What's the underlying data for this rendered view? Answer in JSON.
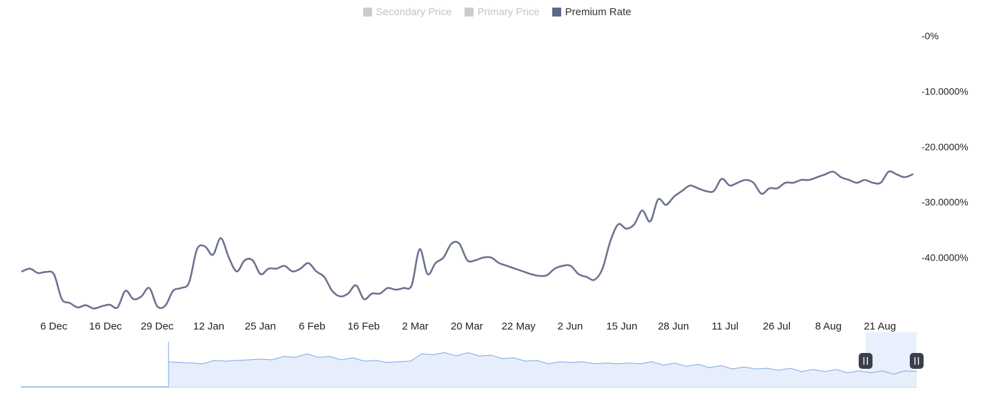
{
  "legend": [
    {
      "label": "Secondary Price",
      "active": false,
      "color": "#cccccc"
    },
    {
      "label": "Primary Price",
      "active": false,
      "color": "#cccccc"
    },
    {
      "label": "Premium Rate",
      "active": true,
      "color": "#5d6789"
    }
  ],
  "colors": {
    "line": "#6b7290",
    "navigator_line": "#7aa5e6",
    "navigator_fill": "#e6eefb",
    "navigator_window": "#e9f0fd",
    "handle": "#3a3f4b"
  },
  "chart_data": {
    "type": "line",
    "title": "",
    "xlabel": "",
    "ylabel": "",
    "x_ticks": [
      "6 Dec",
      "16 Dec",
      "29 Dec",
      "12 Jan",
      "25 Jan",
      "6 Feb",
      "16 Feb",
      "2 Mar",
      "20 Mar",
      "22 May",
      "2 Jun",
      "15 Jun",
      "28 Jun",
      "11 Jul",
      "26 Jul",
      "8 Aug",
      "21 Aug"
    ],
    "y_ticks": [
      "-0%",
      "-10.0000%",
      "-20.0000%",
      "-30.0000%",
      "-40.0000%"
    ],
    "y_tick_values": [
      0,
      -10,
      -20,
      -30,
      -40
    ],
    "ylim": [
      -50,
      0
    ],
    "series": [
      {
        "name": "Premium Rate",
        "values": [
          -42.5,
          -42.0,
          -42.8,
          -42.6,
          -43.0,
          -47.5,
          -48.2,
          -49.0,
          -48.6,
          -49.2,
          -48.8,
          -48.5,
          -49.0,
          -46.0,
          -47.5,
          -47.0,
          -45.5,
          -48.8,
          -48.7,
          -46.0,
          -45.5,
          -44.5,
          -38.5,
          -38.0,
          -39.5,
          -36.5,
          -40.0,
          -42.5,
          -40.5,
          -40.5,
          -43.0,
          -42.0,
          -42.0,
          -41.5,
          -42.5,
          -42.0,
          -41.0,
          -42.5,
          -43.5,
          -46.0,
          -47.0,
          -46.5,
          -45.0,
          -47.5,
          -46.5,
          -46.5,
          -45.5,
          -45.8,
          -45.5,
          -45.0,
          -38.5,
          -43.0,
          -41.0,
          -40.0,
          -37.5,
          -37.5,
          -40.5,
          -40.5,
          -40.0,
          -40.0,
          -41.0,
          -41.5,
          -42.0,
          -42.5,
          -43.0,
          -43.3,
          -43.2,
          -42.0,
          -41.5,
          -41.5,
          -43.0,
          -43.5,
          -44.0,
          -42.0,
          -37.0,
          -34.0,
          -34.8,
          -34.0,
          -31.5,
          -33.5,
          -29.5,
          -30.5,
          -29.0,
          -28.0,
          -27.0,
          -27.5,
          -28.0,
          -28.0,
          -25.8,
          -27.0,
          -26.5,
          -26.0,
          -26.5,
          -28.5,
          -27.5,
          -27.5,
          -26.5,
          -26.5,
          -26.0,
          -26.0,
          -25.5,
          -25.0,
          -24.5,
          -25.5,
          -26.0,
          -26.5,
          -26.0,
          -26.5,
          -26.5,
          -24.5,
          -25.0,
          -25.5,
          -25.0
        ]
      }
    ],
    "navigator": {
      "leading_flat_fraction": 0.165,
      "values": [
        -41,
        -40,
        -42,
        -41,
        -40,
        -39,
        -40,
        -38,
        -39,
        -38,
        -37,
        -36,
        -35,
        -36,
        -37,
        -38,
        -38,
        -39,
        -40,
        -40,
        -41,
        -39,
        -35,
        -34,
        -34,
        -35,
        -34,
        -35,
        -36,
        -37,
        -38,
        -39,
        -40,
        -41,
        -41,
        -40,
        -41,
        -41,
        -42,
        -41,
        -42,
        -41,
        -41,
        -42,
        -42,
        -43,
        -43,
        -44,
        -44,
        -45,
        -45,
        -45,
        -46,
        -46,
        -46,
        -47,
        -47,
        -47,
        -47,
        -48,
        -48,
        -48,
        -48,
        -49,
        -48,
        -47
      ]
    },
    "navigator_window_fraction": [
      0.943,
      1.0
    ],
    "grid": false,
    "legend_position": "top-center"
  }
}
